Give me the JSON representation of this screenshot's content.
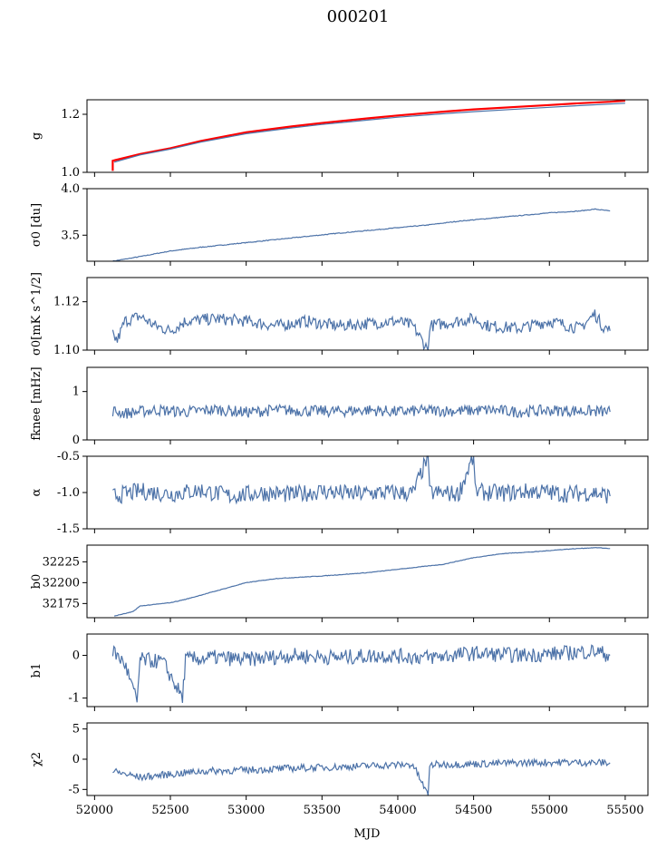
{
  "figure": {
    "title": "000201"
  },
  "chart_data": {
    "type": "line",
    "title": "000201",
    "xlabel": "MJD",
    "xlim": [
      51950,
      55650
    ],
    "x_ticks": [
      52000,
      52500,
      53000,
      53500,
      54000,
      54500,
      55000,
      55500
    ],
    "x_range_data": [
      52120,
      55400
    ],
    "grid": false,
    "legend": "none",
    "colors": {
      "series": "#4c72a8",
      "highlight": "#ff0000",
      "frame": "#000000"
    },
    "panels": [
      {
        "id": "g",
        "ylabel": "g",
        "ylim": [
          1.0,
          1.25
        ],
        "y_ticks": [
          1.0,
          1.2
        ],
        "series": [
          {
            "color": "#ff0000",
            "points": [
              [
                52120,
                1.005
              ],
              [
                52120,
                1.04
              ],
              [
                52300,
                1.063
              ],
              [
                52500,
                1.083
              ],
              [
                52700,
                1.108
              ],
              [
                53000,
                1.138
              ],
              [
                53300,
                1.158
              ],
              [
                53500,
                1.17
              ],
              [
                53800,
                1.186
              ],
              [
                54000,
                1.196
              ],
              [
                54300,
                1.209
              ],
              [
                54500,
                1.217
              ],
              [
                54800,
                1.226
              ],
              [
                55000,
                1.232
              ],
              [
                55200,
                1.238
              ],
              [
                55400,
                1.243
              ],
              [
                55500,
                1.247
              ]
            ]
          },
          {
            "color": "#4c72a8",
            "points": [
              [
                52130,
                1.035
              ],
              [
                52300,
                1.06
              ],
              [
                52500,
                1.08
              ],
              [
                52700,
                1.104
              ],
              [
                53000,
                1.133
              ],
              [
                53300,
                1.153
              ],
              [
                53500,
                1.165
              ],
              [
                53800,
                1.18
              ],
              [
                54000,
                1.19
              ],
              [
                54300,
                1.202
              ],
              [
                54500,
                1.209
              ],
              [
                54800,
                1.218
              ],
              [
                55000,
                1.224
              ],
              [
                55200,
                1.23
              ],
              [
                55500,
                1.238
              ]
            ]
          }
        ]
      },
      {
        "id": "sigma0_du",
        "ylabel": "σ0 [du]",
        "ylim": [
          3.22,
          4.0
        ],
        "y_ticks": [
          3.5,
          4.0
        ],
        "series": [
          {
            "color": "#4c72a8",
            "points": [
              [
                52120,
                3.22
              ],
              [
                52300,
                3.27
              ],
              [
                52500,
                3.33
              ],
              [
                52700,
                3.37
              ],
              [
                53000,
                3.42
              ],
              [
                53300,
                3.47
              ],
              [
                53600,
                3.52
              ],
              [
                53800,
                3.55
              ],
              [
                54000,
                3.58
              ],
              [
                54200,
                3.61
              ],
              [
                54400,
                3.65
              ],
              [
                54600,
                3.68
              ],
              [
                54800,
                3.71
              ],
              [
                55000,
                3.74
              ],
              [
                55200,
                3.76
              ],
              [
                55300,
                3.78
              ],
              [
                55400,
                3.76
              ]
            ]
          }
        ]
      },
      {
        "id": "sigma0_mk",
        "ylabel": "σ0[mK s^1/2]",
        "ylim": [
          1.1,
          1.13
        ],
        "y_ticks": [
          1.1,
          1.12
        ],
        "series": [
          {
            "color": "#4c72a8",
            "points": [
              [
                52120,
                1.106
              ],
              [
                52150,
                1.104
              ],
              [
                52200,
                1.112
              ],
              [
                52300,
                1.114
              ],
              [
                52400,
                1.11
              ],
              [
                52500,
                1.108
              ],
              [
                52600,
                1.112
              ],
              [
                52800,
                1.113
              ],
              [
                53000,
                1.112
              ],
              [
                53200,
                1.11
              ],
              [
                53400,
                1.112
              ],
              [
                53600,
                1.11
              ],
              [
                53800,
                1.111
              ],
              [
                54000,
                1.112
              ],
              [
                54100,
                1.11
              ],
              [
                54200,
                1.1
              ],
              [
                54210,
                1.11
              ],
              [
                54400,
                1.112
              ],
              [
                54500,
                1.113
              ],
              [
                54600,
                1.11
              ],
              [
                54800,
                1.109
              ],
              [
                55000,
                1.112
              ],
              [
                55200,
                1.109
              ],
              [
                55300,
                1.115
              ],
              [
                55350,
                1.11
              ],
              [
                55400,
                1.108
              ]
            ]
          }
        ]
      },
      {
        "id": "fknee",
        "ylabel": "fknee [mHz]",
        "ylim": [
          0,
          1.5
        ],
        "y_ticks": [
          0,
          1
        ],
        "series": [
          {
            "color": "#4c72a8",
            "points": [
              [
                52120,
                0.6
              ],
              [
                52200,
                0.55
              ],
              [
                52400,
                0.62
              ],
              [
                52600,
                0.58
              ],
              [
                52800,
                0.63
              ],
              [
                53000,
                0.57
              ],
              [
                53200,
                0.62
              ],
              [
                53400,
                0.6
              ],
              [
                53600,
                0.59
              ],
              [
                53800,
                0.62
              ],
              [
                54000,
                0.58
              ],
              [
                54200,
                0.61
              ],
              [
                54400,
                0.6
              ],
              [
                54600,
                0.62
              ],
              [
                54800,
                0.58
              ],
              [
                55000,
                0.61
              ],
              [
                55200,
                0.6
              ],
              [
                55400,
                0.58
              ]
            ]
          }
        ]
      },
      {
        "id": "alpha",
        "ylabel": "α",
        "ylim": [
          -1.5,
          -0.5
        ],
        "y_ticks": [
          -1.5,
          -1.0,
          -0.5
        ],
        "series": [
          {
            "color": "#4c72a8",
            "points": [
              [
                52120,
                -1.05
              ],
              [
                52300,
                -0.98
              ],
              [
                52500,
                -1.02
              ],
              [
                52700,
                -0.97
              ],
              [
                52900,
                -1.05
              ],
              [
                53100,
                -1.0
              ],
              [
                53300,
                -1.03
              ],
              [
                53500,
                -0.98
              ],
              [
                53700,
                -1.02
              ],
              [
                53900,
                -1.0
              ],
              [
                54100,
                -1.01
              ],
              [
                54200,
                -0.5
              ],
              [
                54210,
                -1.0
              ],
              [
                54400,
                -1.02
              ],
              [
                54500,
                -0.5
              ],
              [
                54510,
                -0.99
              ],
              [
                54700,
                -1.01
              ],
              [
                54900,
                -0.98
              ],
              [
                55100,
                -1.02
              ],
              [
                55300,
                -1.0
              ],
              [
                55400,
                -1.05
              ]
            ]
          }
        ]
      },
      {
        "id": "b0",
        "ylabel": "b0",
        "ylim": [
          32158,
          32245
        ],
        "y_ticks": [
          32175,
          32200,
          32225
        ],
        "series": [
          {
            "color": "#4c72a8",
            "points": [
              [
                52130,
                32160
              ],
              [
                52250,
                32165
              ],
              [
                52300,
                32172
              ],
              [
                52500,
                32176
              ],
              [
                52600,
                32180
              ],
              [
                52800,
                32190
              ],
              [
                53000,
                32200
              ],
              [
                53200,
                32205
              ],
              [
                53500,
                32208
              ],
              [
                53800,
                32212
              ],
              [
                54000,
                32216
              ],
              [
                54300,
                32222
              ],
              [
                54500,
                32230
              ],
              [
                54700,
                32235
              ],
              [
                54900,
                32237
              ],
              [
                55100,
                32240
              ],
              [
                55300,
                32242
              ],
              [
                55400,
                32241
              ]
            ]
          }
        ]
      },
      {
        "id": "b1",
        "ylabel": "b1",
        "ylim": [
          -1.2,
          0.5
        ],
        "y_ticks": [
          -1,
          0
        ],
        "series": [
          {
            "color": "#4c72a8",
            "points": [
              [
                52120,
                0.1
              ],
              [
                52200,
                -0.2
              ],
              [
                52280,
                -1.1
              ],
              [
                52300,
                -0.1
              ],
              [
                52450,
                -0.15
              ],
              [
                52580,
                -1.0
              ],
              [
                52600,
                -0.1
              ],
              [
                52800,
                -0.05
              ],
              [
                53000,
                -0.1
              ],
              [
                53300,
                0.0
              ],
              [
                53600,
                -0.05
              ],
              [
                53900,
                0.0
              ],
              [
                54200,
                -0.05
              ],
              [
                54500,
                0.05
              ],
              [
                54800,
                0.0
              ],
              [
                55100,
                0.05
              ],
              [
                55300,
                0.1
              ],
              [
                55400,
                0.0
              ]
            ]
          }
        ]
      },
      {
        "id": "chi2",
        "ylabel": "χ2",
        "ylim": [
          -6,
          6
        ],
        "y_ticks": [
          -5,
          0,
          5
        ],
        "series": [
          {
            "color": "#4c72a8",
            "points": [
              [
                52120,
                -2
              ],
              [
                52300,
                -3
              ],
              [
                52500,
                -2.5
              ],
              [
                52700,
                -2
              ],
              [
                53000,
                -1.8
              ],
              [
                53300,
                -1.5
              ],
              [
                53600,
                -1.3
              ],
              [
                53900,
                -1.0
              ],
              [
                54100,
                -0.9
              ],
              [
                54200,
                -6
              ],
              [
                54210,
                -0.9
              ],
              [
                54500,
                -0.8
              ],
              [
                54800,
                -0.6
              ],
              [
                55100,
                -0.5
              ],
              [
                55400,
                -0.6
              ]
            ]
          }
        ]
      }
    ]
  }
}
